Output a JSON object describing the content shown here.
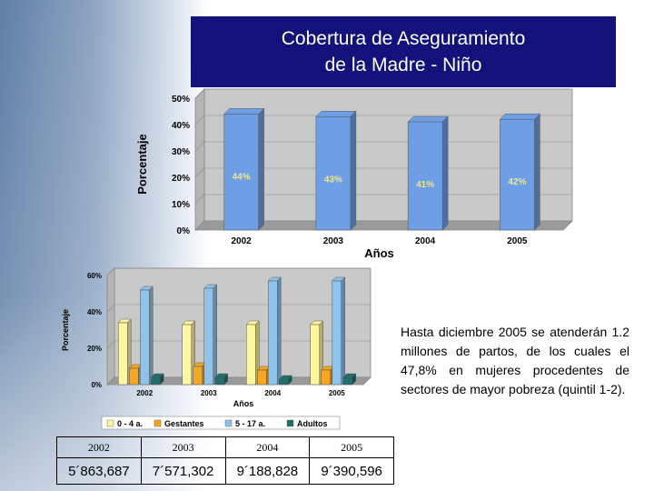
{
  "title": {
    "line1": "Cobertura de Aseguramiento",
    "line2": "de la Madre - Niño"
  },
  "chart_data": [
    {
      "type": "bar",
      "categories": [
        "2002",
        "2003",
        "2004",
        "2005"
      ],
      "values": [
        44,
        43,
        41,
        42
      ],
      "data_labels": [
        "44%",
        "43%",
        "41%",
        "42%"
      ],
      "xlabel": "Años",
      "ylabel": "Porcentaje",
      "ylim": [
        0,
        50
      ],
      "yticks": [
        "0%",
        "10%",
        "20%",
        "30%",
        "40%",
        "50%"
      ],
      "grid": true,
      "color": "#6e9fe6"
    },
    {
      "type": "bar",
      "categories": [
        "2002",
        "2003",
        "2004",
        "2005"
      ],
      "series": [
        {
          "name": "0 - 4 a.",
          "values": [
            34,
            33,
            33,
            33
          ],
          "color": "#fff6a0"
        },
        {
          "name": "Gestantes",
          "values": [
            9,
            10,
            8,
            8
          ],
          "color": "#f5a623"
        },
        {
          "name": "5 - 17 a.",
          "values": [
            52,
            53,
            57,
            57
          ],
          "color": "#8fc3ea"
        },
        {
          "name": "Adultos",
          "values": [
            4,
            4,
            3,
            4
          ],
          "color": "#1f6f6f"
        }
      ],
      "xlabel": "Años",
      "ylabel": "Porcentaje",
      "ylim": [
        0,
        60
      ],
      "yticks": [
        "0%",
        "20%",
        "40%",
        "60%"
      ],
      "legend_position": "bottom",
      "grid": true
    }
  ],
  "note": "Hasta diciembre 2005 se atenderán 1.2 millones de partos, de los cuales el 47,8% en mujeres procedentes de sectores de mayor pobreza (quintil 1-2).",
  "table": {
    "years": [
      "2002",
      "2003",
      "2004",
      "2005"
    ],
    "values": [
      "5´863,687",
      "7´571,302",
      "9´188,828",
      "9´390,596"
    ]
  }
}
